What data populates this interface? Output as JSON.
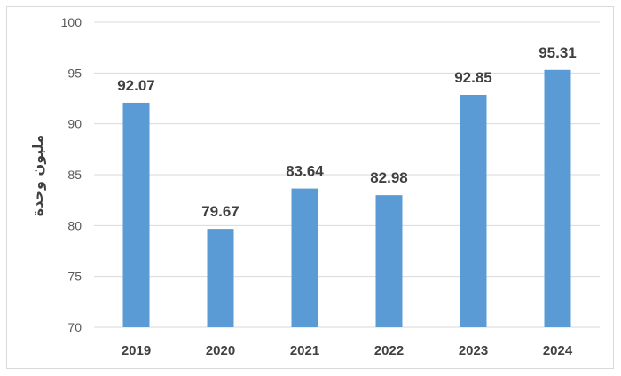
{
  "chart_data": {
    "type": "bar",
    "categories": [
      "2019",
      "2020",
      "2021",
      "2022",
      "2023",
      "2024"
    ],
    "values": [
      92.07,
      79.67,
      83.64,
      82.98,
      92.85,
      95.31
    ],
    "data_labels": [
      "92.07",
      "79.67",
      "83.64",
      "82.98",
      "92.85",
      "95.31"
    ],
    "title": "",
    "xlabel": "",
    "ylabel": "مليون وحدة",
    "ylim": [
      70,
      100
    ],
    "yticks": [
      "70",
      "75",
      "80",
      "85",
      "90",
      "95",
      "100"
    ],
    "grid": true,
    "legend": "none",
    "bar_color": "#5b9bd5",
    "grid_color": "#d9d9d9"
  }
}
